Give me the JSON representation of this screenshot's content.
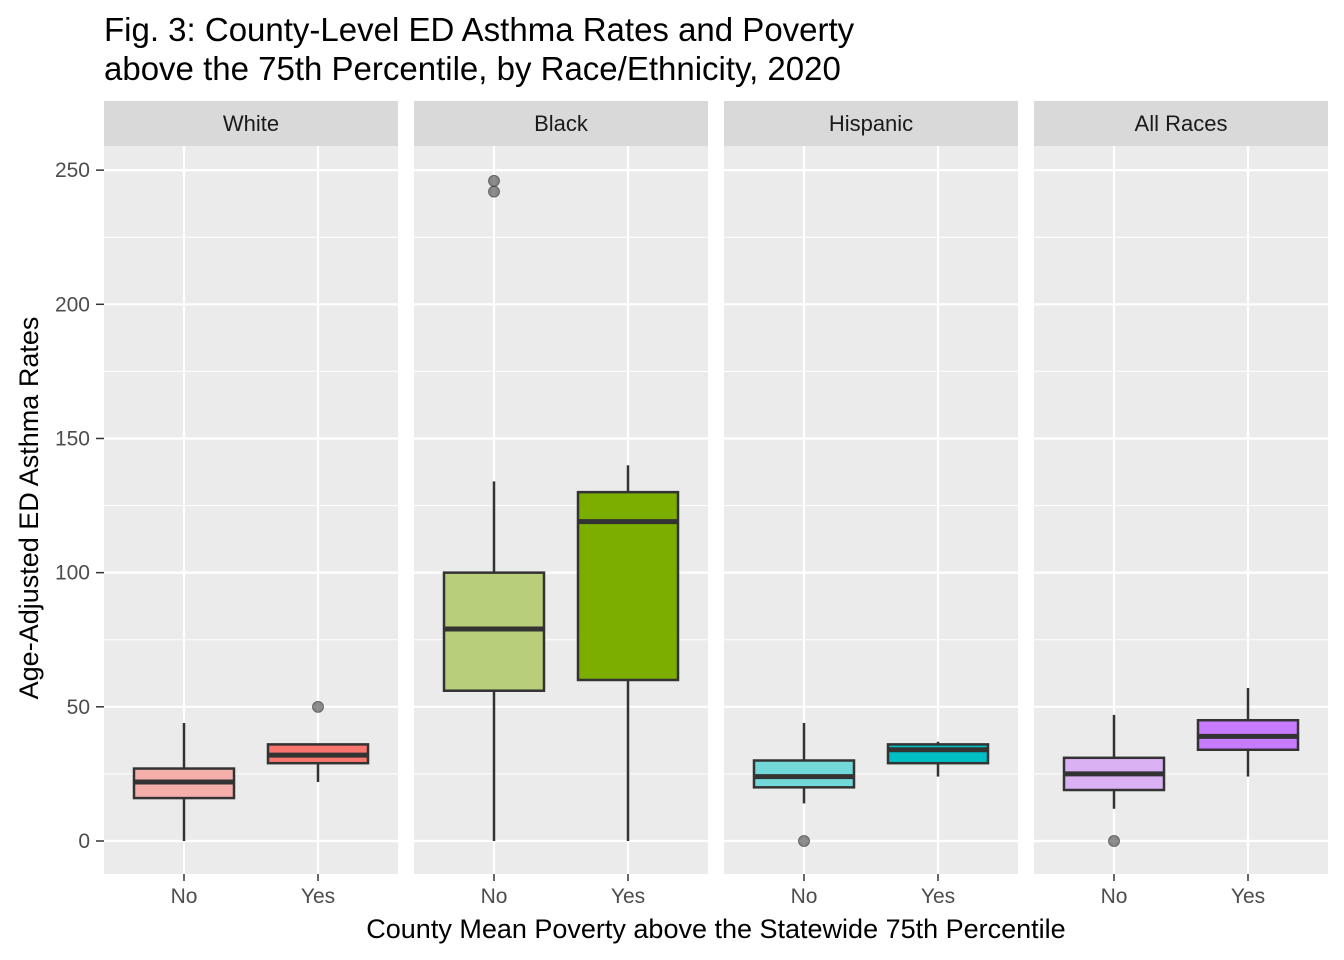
{
  "chart_data": {
    "type": "boxplot",
    "title": "Fig. 3: County-Level ED Asthma Rates and Poverty above the 75th Percentile, by Race/Ethnicity, 2020",
    "title_lines": [
      "Fig. 3: County-Level ED Asthma Rates and Poverty",
      "above the 75th Percentile, by Race/Ethnicity, 2020"
    ],
    "xlabel": "County Mean Poverty above the Statewide 75th Percentile",
    "ylabel": "Age-Adjusted ED Asthma Rates",
    "ylim": [
      -12,
      262
    ],
    "yticks": [
      0,
      50,
      100,
      150,
      200,
      250
    ],
    "categories": [
      "No",
      "Yes"
    ],
    "grid": true,
    "facets": [
      {
        "name": "White",
        "boxes": [
          {
            "category": "No",
            "fill": "#F4AFAA",
            "whisker_low": 0,
            "q1": 16,
            "median": 22,
            "q3": 27,
            "whisker_high": 44,
            "outliers": []
          },
          {
            "category": "Yes",
            "fill": "#F8766D",
            "whisker_low": 22,
            "q1": 29,
            "median": 32,
            "q3": 36,
            "whisker_high": 36,
            "outliers": [
              50
            ]
          }
        ]
      },
      {
        "name": "Black",
        "boxes": [
          {
            "category": "No",
            "fill": "#B8CE7A",
            "whisker_low": 0,
            "q1": 56,
            "median": 79,
            "q3": 100,
            "whisker_high": 134,
            "outliers": [
              242,
              246
            ]
          },
          {
            "category": "Yes",
            "fill": "#7CAE00",
            "whisker_low": 0,
            "q1": 60,
            "median": 119,
            "q3": 130,
            "whisker_high": 140,
            "outliers": []
          }
        ]
      },
      {
        "name": "Hispanic",
        "boxes": [
          {
            "category": "No",
            "fill": "#72D8D8",
            "whisker_low": 14,
            "q1": 20,
            "median": 24,
            "q3": 30,
            "whisker_high": 44,
            "outliers": [
              0
            ]
          },
          {
            "category": "Yes",
            "fill": "#00BFC4",
            "whisker_low": 24,
            "q1": 29,
            "median": 34,
            "q3": 36,
            "whisker_high": 37,
            "outliers": []
          }
        ]
      },
      {
        "name": "All Races",
        "boxes": [
          {
            "category": "No",
            "fill": "#DAB1F3",
            "whisker_low": 12,
            "q1": 19,
            "median": 25,
            "q3": 31,
            "whisker_high": 47,
            "outliers": [
              0
            ]
          },
          {
            "category": "Yes",
            "fill": "#C77CFF",
            "whisker_low": 24,
            "q1": 34,
            "median": 39,
            "q3": 45,
            "whisker_high": 57,
            "outliers": []
          }
        ]
      }
    ]
  },
  "colors": {
    "panel_background": "#EBEBEB",
    "strip_background": "#D9D9D9",
    "grid_line": "#FFFFFF",
    "box_outline": "#333333",
    "outlier": "#333333"
  }
}
